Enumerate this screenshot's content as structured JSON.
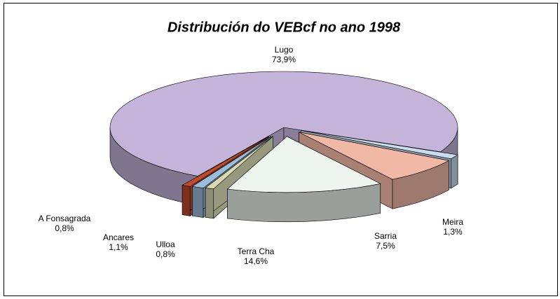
{
  "chart_data": {
    "type": "pie3d",
    "title": "Distribución do VEBcf no ano 1998",
    "categories": [
      "Meira",
      "Sarria",
      "Terra Cha",
      "Ulloa",
      "Ancares",
      "A Fonsagrada",
      "Lugo"
    ],
    "values": [
      1.3,
      7.5,
      14.6,
      0.8,
      1.1,
      0.8,
      73.9
    ],
    "value_labels": [
      "1,3%",
      "7,5%",
      "14,6%",
      "0,8%",
      "1,1%",
      "0,8%",
      "73,9%"
    ],
    "colors": [
      "#c8dcee",
      "#f2b8a6",
      "#eef4ee",
      "#d8dab4",
      "#9cbcdc",
      "#c04a2a",
      "#c4b4da"
    ]
  }
}
